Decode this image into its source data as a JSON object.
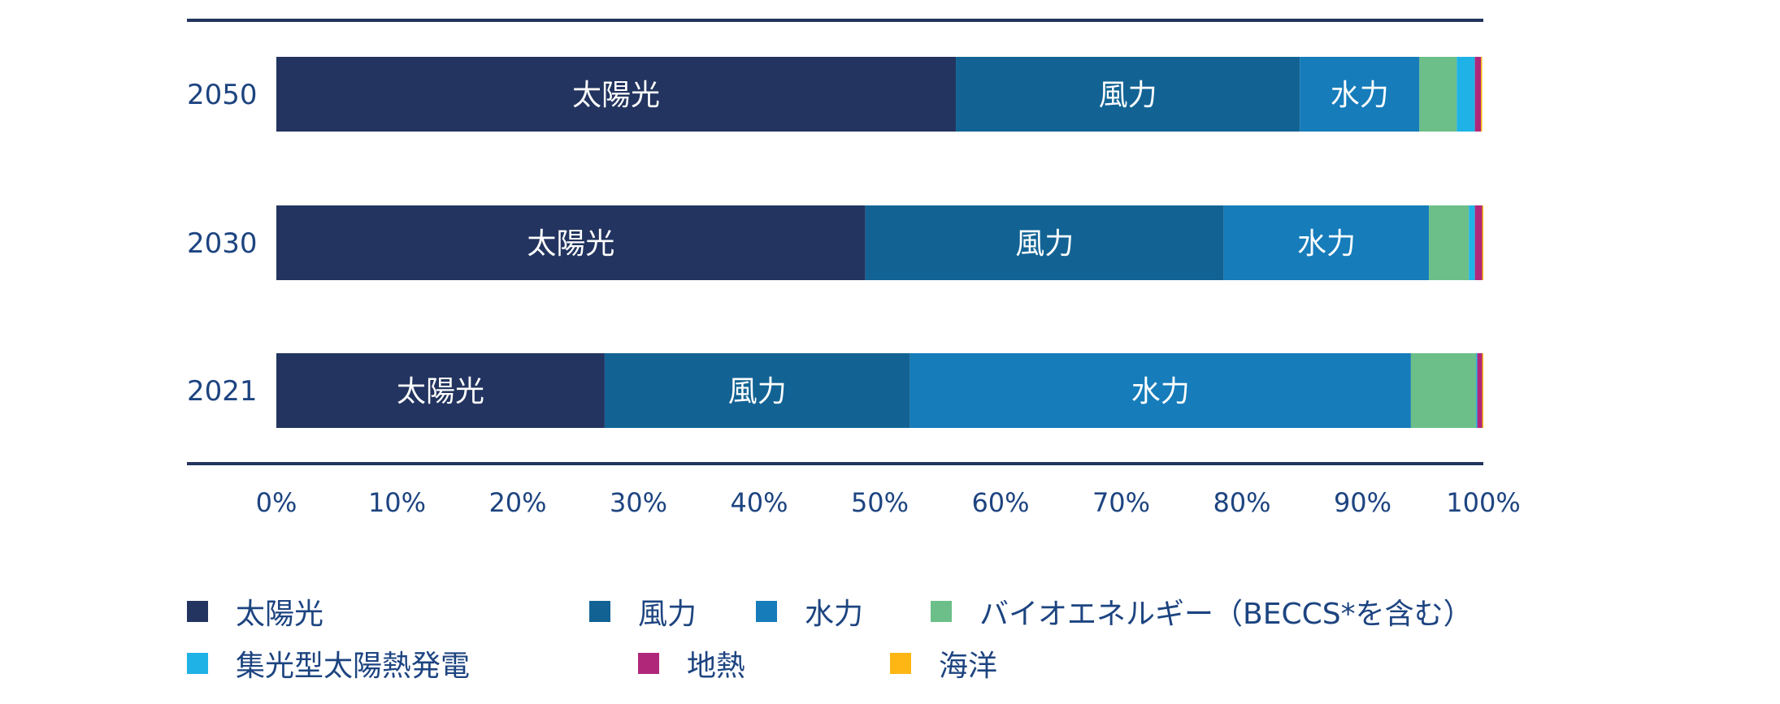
{
  "chart_data": {
    "type": "bar",
    "orientation": "horizontal",
    "stacked": true,
    "categories": [
      "2050",
      "2030",
      "2021"
    ],
    "xlim": [
      0,
      100
    ],
    "x_ticks": [
      "0%",
      "10%",
      "20%",
      "30%",
      "40%",
      "50%",
      "60%",
      "70%",
      "80%",
      "90%",
      "100%"
    ],
    "series": [
      {
        "name": "太陽光",
        "color": "#22345f",
        "values": [
          56.3,
          48.8,
          27.2
        ]
      },
      {
        "name": "風力",
        "color": "#126394",
        "values": [
          28.5,
          29.7,
          25.3
        ]
      },
      {
        "name": "水力",
        "color": "#167cba",
        "values": [
          9.9,
          17.0,
          41.5
        ]
      },
      {
        "name": "バイオエネルギー（BECCS*を含む）",
        "color": "#6cbf89",
        "values": [
          3.1,
          3.3,
          5.4
        ]
      },
      {
        "name": "集光型太陽熱発電",
        "color": "#1fb2e6",
        "values": [
          1.5,
          0.5,
          0.1
        ]
      },
      {
        "name": "地熱",
        "color": "#b0277a",
        "values": [
          0.5,
          0.6,
          0.4
        ]
      },
      {
        "name": "海洋",
        "color": "#fdb614",
        "values": [
          0.1,
          0.1,
          0.1
        ]
      }
    ],
    "segment_labels": {
      "2050": [
        "太陽光",
        "風力",
        "水力"
      ],
      "2030": [
        "太陽光",
        "風力",
        "水力"
      ],
      "2021": [
        "太陽光",
        "風力",
        "水力"
      ]
    },
    "legend_position": "bottom",
    "grid": false
  }
}
